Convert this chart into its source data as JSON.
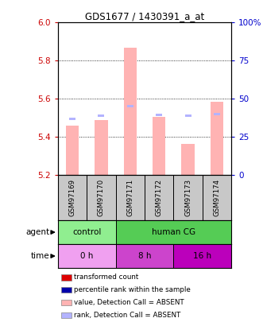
{
  "title": "GDS1677 / 1430391_a_at",
  "samples": [
    "GSM97169",
    "GSM97170",
    "GSM97171",
    "GSM97172",
    "GSM97173",
    "GSM97174"
  ],
  "bar_values": [
    5.46,
    5.49,
    5.87,
    5.505,
    5.365,
    5.585
  ],
  "rank_values": [
    5.49,
    5.505,
    5.555,
    5.51,
    5.505,
    5.515
  ],
  "ylim_left": [
    5.2,
    6.0
  ],
  "yticks_left": [
    5.2,
    5.4,
    5.6,
    5.8,
    6.0
  ],
  "ylim_right": [
    0,
    100
  ],
  "yticks_right": [
    0,
    25,
    50,
    75,
    100
  ],
  "ytick_labels_right": [
    "0",
    "25",
    "50",
    "75",
    "100%"
  ],
  "bar_color": "#ffb3b3",
  "rank_color": "#b3b3ff",
  "agent_labels": [
    {
      "label": "control",
      "cols": [
        0,
        1
      ],
      "color": "#90ee90"
    },
    {
      "label": "human CG",
      "cols": [
        2,
        3,
        4,
        5
      ],
      "color": "#55cc55"
    }
  ],
  "time_labels": [
    {
      "label": "0 h",
      "cols": [
        0,
        1
      ],
      "color": "#f0a0f0"
    },
    {
      "label": "8 h",
      "cols": [
        2,
        3
      ],
      "color": "#cc44cc"
    },
    {
      "label": "16 h",
      "cols": [
        4,
        5
      ],
      "color": "#bb00bb"
    }
  ],
  "sample_bg_color": "#c8c8c8",
  "legend_items": [
    {
      "label": "transformed count",
      "color": "#dd0000"
    },
    {
      "label": "percentile rank within the sample",
      "color": "#0000aa"
    },
    {
      "label": "value, Detection Call = ABSENT",
      "color": "#ffb3b3"
    },
    {
      "label": "rank, Detection Call = ABSENT",
      "color": "#b3b3ff"
    }
  ],
  "grid_color": "black",
  "left_tick_color": "#cc0000",
  "right_tick_color": "#0000cc"
}
